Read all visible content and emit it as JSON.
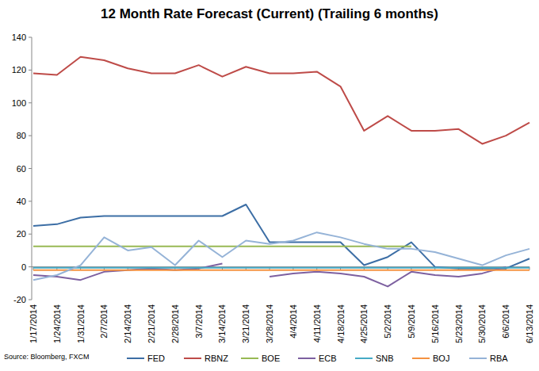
{
  "chart_data": {
    "type": "line",
    "title": "12 Month Rate Forecast (Current) (Trailing 6 months)",
    "source": "Source: Bloomberg, FXCM",
    "categories": [
      "1/17/2014",
      "1/24/2014",
      "1/31/2014",
      "2/7/2014",
      "2/14/2014",
      "2/21/2014",
      "2/28/2014",
      "3/7/2014",
      "3/14/2014",
      "3/21/2014",
      "3/28/2014",
      "4/4/2014",
      "4/11/2014",
      "4/18/2014",
      "4/25/2014",
      "5/2/2014",
      "5/9/2014",
      "5/16/2014",
      "5/23/2014",
      "5/30/2014",
      "6/6/2014",
      "6/13/2014"
    ],
    "series": [
      {
        "name": "FED",
        "color": "#3c6ea5",
        "values": [
          25,
          26,
          30,
          31,
          31,
          31,
          31,
          31,
          31,
          38,
          15,
          15,
          15,
          15,
          1,
          6,
          15,
          0,
          -1,
          -1,
          -1,
          5
        ]
      },
      {
        "name": "RBNZ",
        "color": "#be4b48",
        "values": [
          118,
          117,
          128,
          126,
          121,
          118,
          118,
          123,
          116,
          122,
          118,
          118,
          119,
          110,
          83,
          92,
          83,
          83,
          84,
          75,
          80,
          88
        ]
      },
      {
        "name": "BOE",
        "color": "#98b954",
        "values": [
          12.5,
          12.5,
          12.5,
          12.5,
          12.5,
          12.5,
          12.5,
          12.5,
          12.5,
          12.5,
          12.5,
          12.5,
          12.5,
          12.5,
          12.5,
          12.5,
          12.5,
          null,
          null,
          null,
          null,
          null
        ]
      },
      {
        "name": "ECB",
        "color": "#7d60a0",
        "values": [
          -5,
          -6,
          -8,
          -3,
          -2,
          -1,
          -2,
          -1,
          2,
          null,
          -6,
          -4,
          -3,
          -4,
          -6,
          -12,
          -3,
          -5,
          -6,
          -4,
          0,
          null
        ]
      },
      {
        "name": "SNB",
        "color": "#46aac5",
        "values": [
          -0.5,
          -0.5,
          -0.5,
          -0.5,
          -0.5,
          -0.5,
          -0.5,
          -0.5,
          -0.5,
          -0.5,
          -0.5,
          -0.5,
          -0.5,
          -0.5,
          -0.5,
          -0.5,
          -0.5,
          -0.5,
          -0.5,
          -0.5,
          -0.5,
          -0.5
        ]
      },
      {
        "name": "BOJ",
        "color": "#f59240",
        "values": [
          -2,
          -2,
          -2,
          -2,
          -2,
          -2,
          -2,
          -2,
          -2,
          -2,
          -2,
          -2,
          -2,
          -2,
          -2,
          -2,
          -2,
          -2,
          -2,
          -2,
          -2,
          -2
        ]
      },
      {
        "name": "RBA",
        "color": "#95b3d7",
        "values": [
          -8,
          -5,
          1,
          18,
          10,
          12,
          1,
          16,
          6,
          16,
          14,
          16,
          21,
          18,
          14,
          11,
          11,
          9,
          5,
          1,
          7,
          11
        ]
      }
    ],
    "ylim": [
      -20,
      140
    ],
    "yticks": [
      -20,
      0,
      20,
      40,
      60,
      80,
      100,
      120,
      140
    ],
    "grid": false,
    "legend": "bottom"
  }
}
